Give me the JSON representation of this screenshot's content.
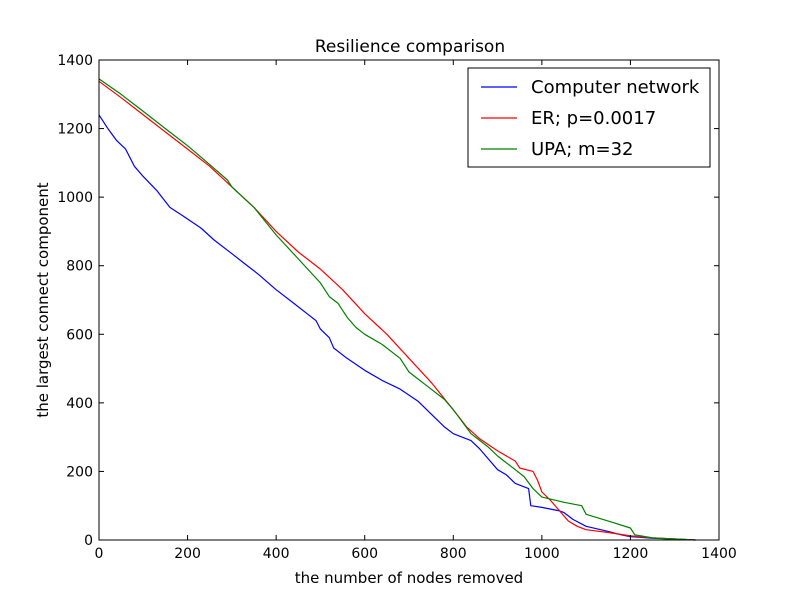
{
  "chart_data": {
    "type": "line",
    "title": "Resilience comparison",
    "xlabel": "the number of nodes removed",
    "ylabel": "the largest connect component",
    "xlim": [
      0,
      1400
    ],
    "ylim": [
      0,
      1400
    ],
    "x_ticks": [
      0,
      200,
      400,
      600,
      800,
      1000,
      1200,
      1400
    ],
    "y_ticks": [
      0,
      200,
      400,
      600,
      800,
      1000,
      1200,
      1400
    ],
    "grid": false,
    "legend_position": "top-right",
    "series": [
      {
        "name": "Computer network",
        "color": "#0000ff",
        "x": [
          0,
          20,
          40,
          60,
          80,
          100,
          130,
          160,
          190,
          230,
          260,
          300,
          330,
          360,
          400,
          440,
          470,
          490,
          500,
          520,
          530,
          560,
          600,
          640,
          680,
          720,
          740,
          760,
          780,
          800,
          840,
          860,
          880,
          900,
          920,
          940,
          970,
          975,
          1000,
          1020,
          1040,
          1050,
          1070,
          1100,
          1150,
          1180,
          1200,
          1250,
          1300,
          1347
        ],
        "y": [
          1240,
          1200,
          1165,
          1140,
          1090,
          1060,
          1020,
          970,
          945,
          910,
          875,
          835,
          805,
          775,
          730,
          690,
          660,
          640,
          615,
          590,
          560,
          530,
          495,
          465,
          440,
          405,
          380,
          355,
          330,
          310,
          290,
          265,
          235,
          205,
          190,
          165,
          150,
          100,
          95,
          90,
          85,
          80,
          60,
          40,
          25,
          15,
          10,
          5,
          3,
          0
        ]
      },
      {
        "name": "ER; p=0.0017",
        "color": "#ff0000",
        "x": [
          0,
          50,
          100,
          150,
          200,
          250,
          300,
          350,
          400,
          450,
          500,
          550,
          600,
          650,
          700,
          750,
          800,
          830,
          860,
          900,
          940,
          950,
          980,
          990,
          1000,
          1020,
          1040,
          1060,
          1080,
          1100,
          1150,
          1200,
          1250,
          1300,
          1347
        ],
        "y": [
          1338,
          1290,
          1240,
          1190,
          1140,
          1090,
          1030,
          970,
          900,
          840,
          790,
          730,
          660,
          600,
          530,
          460,
          380,
          330,
          295,
          260,
          230,
          210,
          200,
          175,
          140,
          115,
          85,
          55,
          40,
          30,
          22,
          12,
          6,
          3,
          0
        ]
      },
      {
        "name": "UPA; m=32",
        "color": "#008000",
        "x": [
          0,
          50,
          100,
          150,
          200,
          250,
          290,
          300,
          350,
          400,
          450,
          500,
          520,
          540,
          560,
          580,
          600,
          640,
          680,
          700,
          740,
          780,
          800,
          840,
          880,
          900,
          940,
          960,
          980,
          1000,
          1050,
          1090,
          1100,
          1150,
          1200,
          1210,
          1250,
          1300,
          1347
        ],
        "y": [
          1345,
          1300,
          1250,
          1200,
          1150,
          1095,
          1050,
          1030,
          970,
          890,
          820,
          750,
          710,
          690,
          650,
          620,
          600,
          570,
          530,
          490,
          450,
          410,
          380,
          310,
          270,
          245,
          205,
          185,
          150,
          125,
          110,
          100,
          75,
          55,
          35,
          15,
          6,
          3,
          0
        ]
      }
    ]
  }
}
